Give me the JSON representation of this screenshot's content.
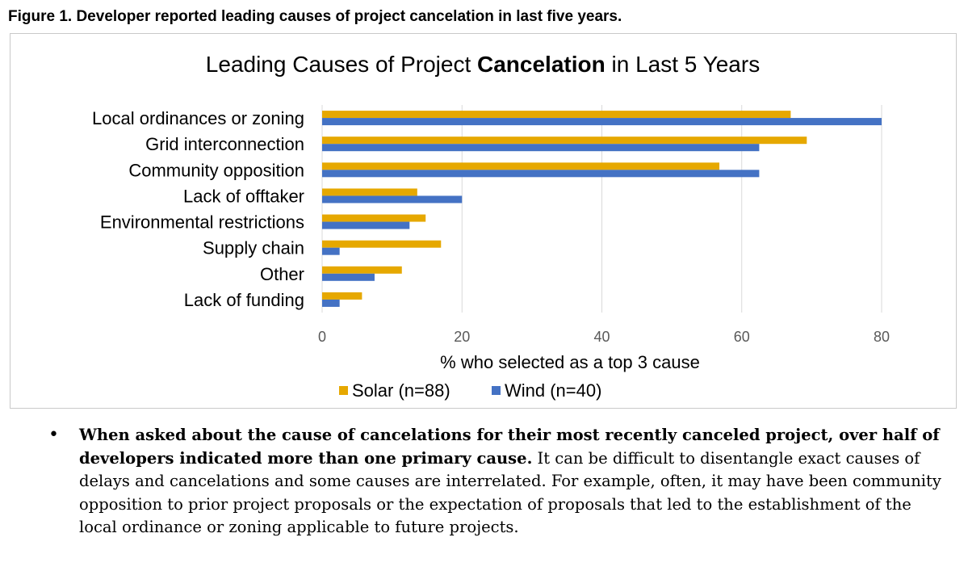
{
  "caption": "Figure 1. Developer reported leading causes of project cancelation in last five years.",
  "chart_data": {
    "type": "bar",
    "orientation": "horizontal",
    "title": "Leading Causes of Project Cancelation in Last 5 Years",
    "title_parts": {
      "before": "Leading Causes of Project ",
      "bold": "Cancelation",
      "after": " in Last 5 Years"
    },
    "categories": [
      "Local ordinances or zoning",
      "Grid interconnection",
      "Community opposition",
      "Lack of offtaker",
      "Environmental restrictions",
      "Supply chain",
      "Other",
      "Lack of funding"
    ],
    "series": [
      {
        "name": "Solar (n=88)",
        "color": "#e6a800",
        "values": [
          67,
          69.3,
          56.8,
          13.6,
          14.8,
          17,
          11.4,
          5.7
        ]
      },
      {
        "name": "Wind (n=40)",
        "color": "#4472c4",
        "values": [
          80,
          62.5,
          62.5,
          20,
          12.5,
          2.5,
          7.5,
          2.5
        ]
      }
    ],
    "xlabel": "% who selected as a top 3 cause",
    "ylabel": "",
    "xlim": [
      0,
      80
    ],
    "xticks": [
      "0",
      "20",
      "40",
      "60",
      "80"
    ],
    "grid": true,
    "legend_position": "bottom"
  },
  "bullet": {
    "symbol": "•",
    "bold_text": "When asked about the cause of cancelations for their most recently canceled project, over half of developers indicated more than one primary cause.",
    "normal_text": " It can be difficult to disentangle exact causes of delays and cancelations and some causes are interrelated. For example, often, it may have been community opposition to prior project proposals or the expectation of proposals that led to the establishment of the local ordinance or zoning applicable to future projects."
  }
}
